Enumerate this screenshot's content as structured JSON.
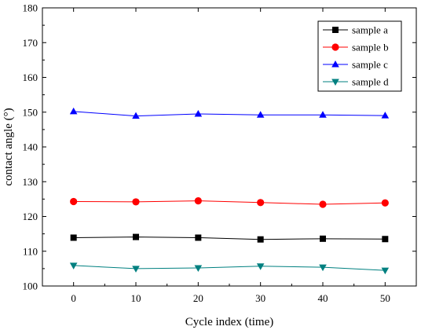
{
  "chart_data": {
    "type": "line",
    "title": "",
    "xlabel": "Cycle index (time)",
    "ylabel": "contact angle (°)",
    "xlim": [
      -5,
      55
    ],
    "ylim": [
      100,
      180
    ],
    "x_ticks": [
      0,
      10,
      20,
      30,
      40,
      50
    ],
    "y_ticks": [
      100,
      110,
      120,
      130,
      140,
      150,
      160,
      170,
      180
    ],
    "grid": false,
    "legend_position": "top-right",
    "x": [
      0,
      10,
      20,
      30,
      40,
      50
    ],
    "series": [
      {
        "name": "sample a",
        "color": "#000000",
        "marker": "square",
        "values": [
          113.9,
          114.1,
          113.9,
          113.4,
          113.6,
          113.5
        ]
      },
      {
        "name": "sample b",
        "color": "#ff0000",
        "marker": "circle",
        "values": [
          124.3,
          124.2,
          124.5,
          124.0,
          123.5,
          123.9
        ]
      },
      {
        "name": "sample c",
        "color": "#0000ff",
        "marker": "triangle-up",
        "values": [
          150.2,
          148.9,
          149.5,
          149.2,
          149.2,
          149.0
        ]
      },
      {
        "name": "sample d",
        "color": "#008080",
        "marker": "triangle-down",
        "values": [
          105.9,
          105.0,
          105.2,
          105.7,
          105.4,
          104.5
        ]
      }
    ]
  }
}
